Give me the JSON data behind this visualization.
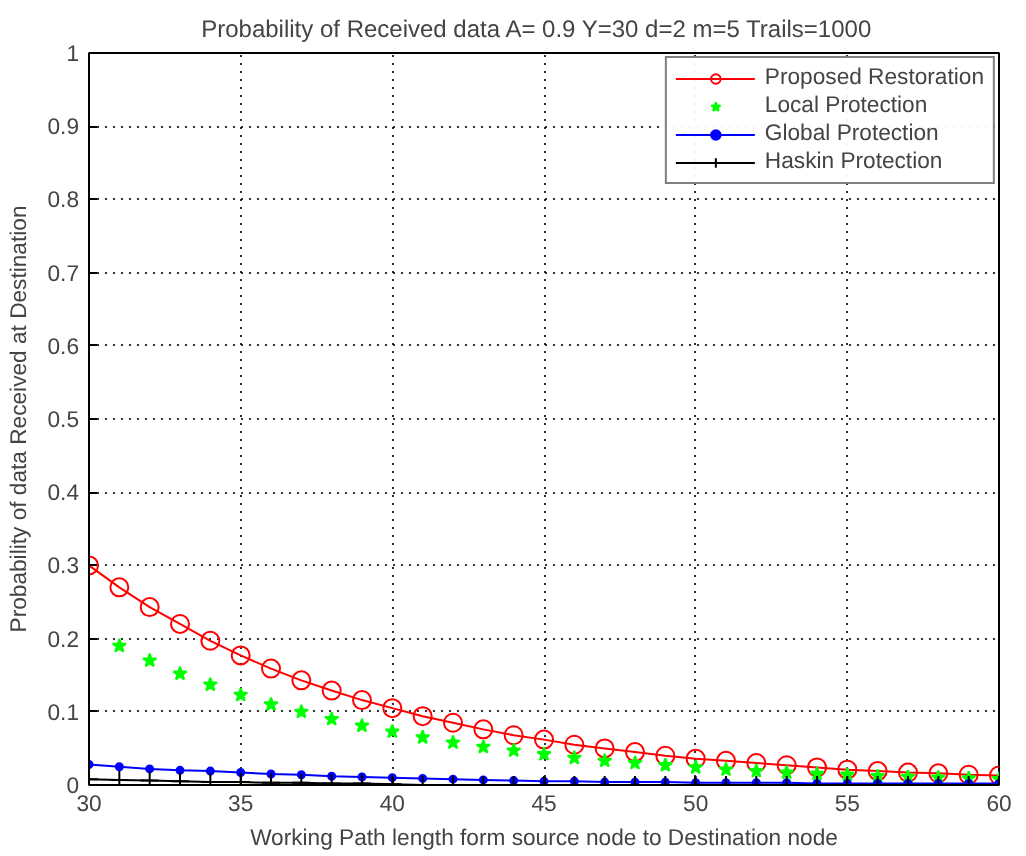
{
  "chart_data": {
    "type": "line",
    "title": "Probability of Received data A= 0.9 Y=30 d=2  m=5  Trails=1000",
    "xlabel": "Working Path length form source node to Destination node",
    "ylabel": "Probability of data Received at Destination",
    "x": [
      30,
      31,
      32,
      33,
      34,
      35,
      36,
      37,
      38,
      39,
      40,
      41,
      42,
      43,
      44,
      45,
      46,
      47,
      48,
      49,
      50,
      51,
      52,
      53,
      54,
      55,
      56,
      57,
      58,
      59,
      60
    ],
    "series": [
      {
        "name": "Proposed Restoration",
        "color": "#ff0000",
        "marker": "circle",
        "values": [
          0.3,
          0.27,
          0.243,
          0.22,
          0.197,
          0.177,
          0.159,
          0.143,
          0.129,
          0.116,
          0.105,
          0.094,
          0.085,
          0.076,
          0.068,
          0.062,
          0.055,
          0.05,
          0.045,
          0.04,
          0.036,
          0.033,
          0.03,
          0.027,
          0.024,
          0.021,
          0.019,
          0.017,
          0.016,
          0.014,
          0.013
        ]
      },
      {
        "name": "Local Protection",
        "color": "#00ff00",
        "type": "scatter",
        "marker": "star",
        "values": [
          null,
          0.19,
          0.17,
          0.152,
          0.137,
          0.123,
          0.11,
          0.1,
          0.09,
          0.081,
          0.073,
          0.065,
          0.058,
          0.052,
          0.047,
          0.042,
          0.037,
          0.033,
          0.03,
          0.027,
          0.024,
          0.021,
          0.019,
          0.017,
          0.015,
          0.014,
          0.012,
          0.011,
          0.01,
          0.009,
          0.008
        ]
      },
      {
        "name": "Global Protection",
        "color": "#0000ff",
        "marker": "dot",
        "values": [
          0.028,
          0.025,
          0.022,
          0.02,
          0.019,
          0.017,
          0.015,
          0.014,
          0.012,
          0.011,
          0.01,
          0.009,
          0.008,
          0.007,
          0.006,
          0.005,
          0.005,
          0.004,
          0.004,
          0.004,
          0.003,
          0.003,
          0.003,
          0.003,
          0.002,
          0.002,
          0.002,
          0.002,
          0.002,
          0.002,
          0.002
        ]
      },
      {
        "name": "Haskin Protection",
        "color": "#000000",
        "marker": "cross",
        "values": [
          0.008,
          0.007,
          0.006,
          0.005,
          0.004,
          0.004,
          0.003,
          0.003,
          0.002,
          0.002,
          0.001,
          0,
          0,
          0,
          0,
          0,
          0,
          0,
          0,
          0,
          0,
          0,
          0,
          0,
          0,
          0,
          0,
          0,
          0,
          0,
          0
        ]
      }
    ],
    "xlim": [
      30,
      60
    ],
    "ylim": [
      0,
      1
    ],
    "xticks": [
      30,
      35,
      40,
      45,
      50,
      55,
      60
    ],
    "yticks": [
      0,
      0.1,
      0.2,
      0.3,
      0.4,
      0.5,
      0.6,
      0.7,
      0.8,
      0.9,
      1
    ],
    "grid": true,
    "legend": "top right"
  }
}
